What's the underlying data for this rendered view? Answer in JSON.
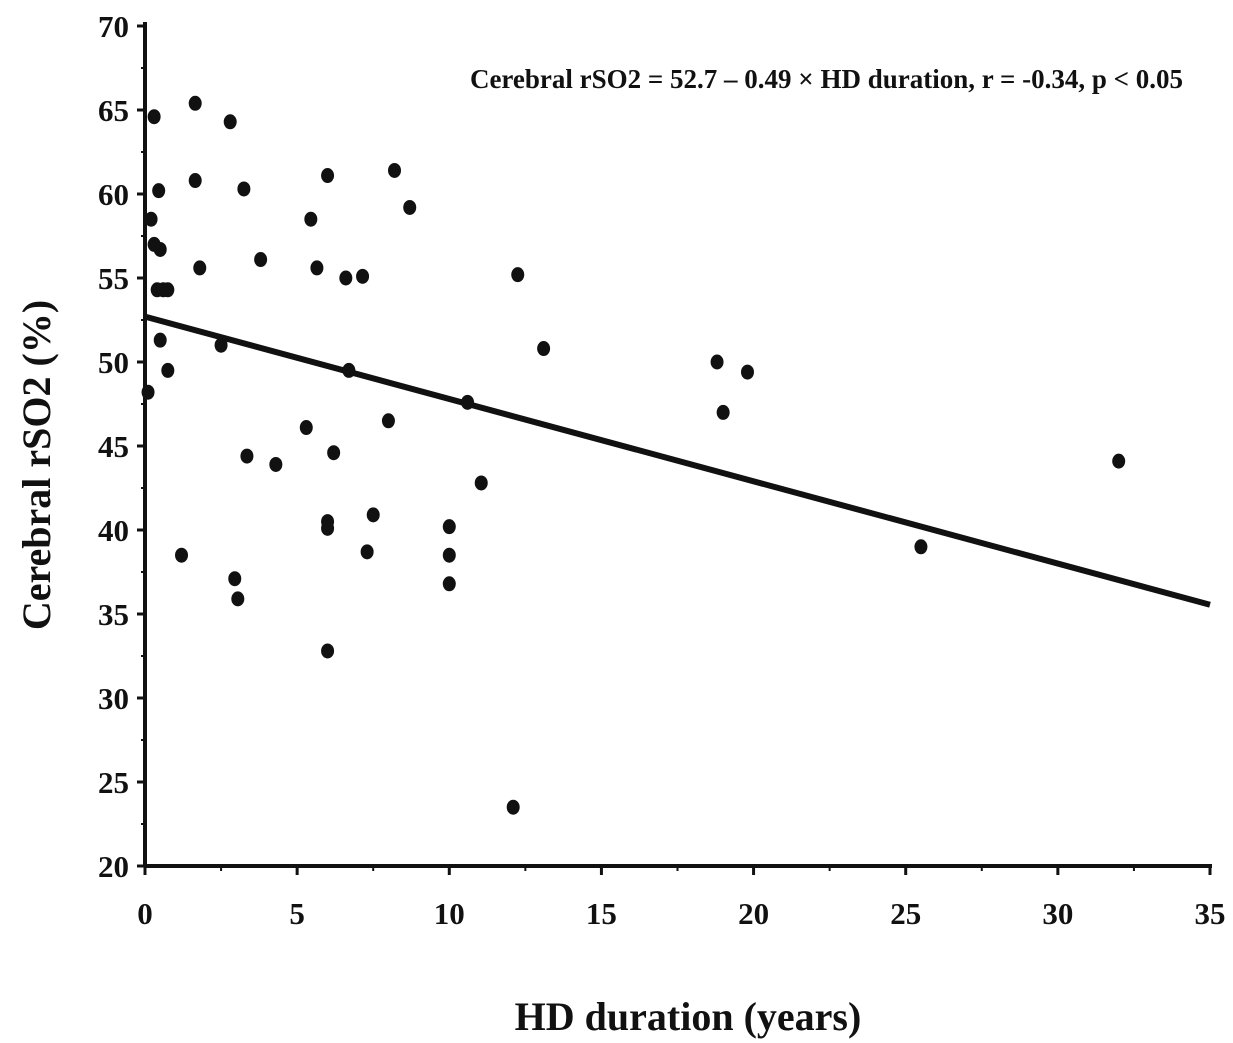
{
  "chart_data": {
    "type": "scatter",
    "title": "",
    "xlabel": "HD duration (years)",
    "ylabel": "Cerebral rSO2 (%)",
    "xlim": [
      0,
      35
    ],
    "ylim": [
      20,
      70
    ],
    "xticks": [
      0,
      5,
      10,
      15,
      20,
      25,
      30,
      35
    ],
    "yticks": [
      20,
      25,
      30,
      35,
      40,
      45,
      50,
      55,
      60,
      65,
      70
    ],
    "grid": false,
    "legend": "none",
    "annotation": "Cerebral rSO2 = 52.7 – 0.49 × HD duration, r = -0.34, p < 0.05",
    "regression": {
      "intercept": 52.7,
      "slope": -0.49,
      "x_range": [
        0,
        35
      ]
    },
    "colors": {
      "points": "#111111",
      "line": "#111111",
      "axis": "#111111"
    },
    "series": [
      {
        "points": [
          [
            0.1,
            48.2
          ],
          [
            0.2,
            58.5
          ],
          [
            0.3,
            57.0
          ],
          [
            0.3,
            64.6
          ],
          [
            0.4,
            54.3
          ],
          [
            0.45,
            60.2
          ],
          [
            0.5,
            56.7
          ],
          [
            0.5,
            51.3
          ],
          [
            0.6,
            54.3
          ],
          [
            0.75,
            49.5
          ],
          [
            0.75,
            54.3
          ],
          [
            1.2,
            38.5
          ],
          [
            1.65,
            65.4
          ],
          [
            1.65,
            60.8
          ],
          [
            1.8,
            55.6
          ],
          [
            2.5,
            51.0
          ],
          [
            2.8,
            64.3
          ],
          [
            2.95,
            37.1
          ],
          [
            3.05,
            35.9
          ],
          [
            3.25,
            60.3
          ],
          [
            3.35,
            44.4
          ],
          [
            3.8,
            56.1
          ],
          [
            4.3,
            43.9
          ],
          [
            5.3,
            46.1
          ],
          [
            5.45,
            58.5
          ],
          [
            5.65,
            55.6
          ],
          [
            6.0,
            61.1
          ],
          [
            6.0,
            40.5
          ],
          [
            6.0,
            40.1
          ],
          [
            6.0,
            32.8
          ],
          [
            6.2,
            44.6
          ],
          [
            6.6,
            55.0
          ],
          [
            6.7,
            49.5
          ],
          [
            7.15,
            55.1
          ],
          [
            7.3,
            38.7
          ],
          [
            7.5,
            40.9
          ],
          [
            8.0,
            46.5
          ],
          [
            8.2,
            61.4
          ],
          [
            8.7,
            59.2
          ],
          [
            10.0,
            40.2
          ],
          [
            10.0,
            38.5
          ],
          [
            10.0,
            36.8
          ],
          [
            10.6,
            47.6
          ],
          [
            11.05,
            42.8
          ],
          [
            12.1,
            23.5
          ],
          [
            12.25,
            55.2
          ],
          [
            13.1,
            50.8
          ],
          [
            18.8,
            50.0
          ],
          [
            19.0,
            47.0
          ],
          [
            19.8,
            49.4
          ],
          [
            25.5,
            39.0
          ],
          [
            32.0,
            44.1
          ]
        ]
      }
    ]
  }
}
